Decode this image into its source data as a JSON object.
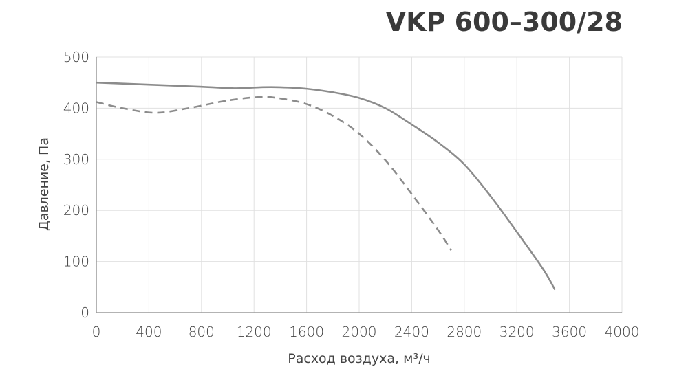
{
  "chart_data": {
    "type": "line",
    "title": "VKP 600–300/28",
    "xlabel": "Расход воздуха, м³/ч",
    "ylabel": "Давление, Па",
    "xlim": [
      0,
      4000
    ],
    "ylim": [
      0,
      500
    ],
    "x_ticks": [
      "0",
      "400",
      "800",
      "1200",
      "1600",
      "2000",
      "2400",
      "2800",
      "3200",
      "3600",
      "4000"
    ],
    "y_ticks": [
      "0",
      "100",
      "200",
      "300",
      "400",
      "500"
    ],
    "x_tick_values": [
      0,
      400,
      800,
      1200,
      1600,
      2000,
      2400,
      2800,
      3200,
      3600,
      4000
    ],
    "y_tick_values": [
      0,
      100,
      200,
      300,
      400,
      500
    ],
    "grid": true,
    "legend": "none",
    "series": [
      {
        "name": "solid",
        "style": "solid",
        "color": "#8c8c8c",
        "x": [
          0,
          400,
          800,
          1060,
          1250,
          1400,
          1600,
          1800,
          2000,
          2200,
          2400,
          2600,
          2800,
          3000,
          3200,
          3400,
          3490
        ],
        "y": [
          450,
          446,
          442,
          439,
          441,
          441,
          438,
          431,
          420,
          400,
          368,
          333,
          290,
          228,
          158,
          85,
          45
        ]
      },
      {
        "name": "dashed",
        "style": "dashed",
        "color": "#8c8c8c",
        "x": [
          0,
          200,
          450,
          700,
          1000,
          1250,
          1400,
          1600,
          1800,
          2000,
          2200,
          2400,
          2600,
          2700
        ],
        "y": [
          412,
          400,
          391,
          400,
          415,
          422,
          419,
          408,
          385,
          350,
          298,
          232,
          162,
          122
        ]
      }
    ]
  }
}
